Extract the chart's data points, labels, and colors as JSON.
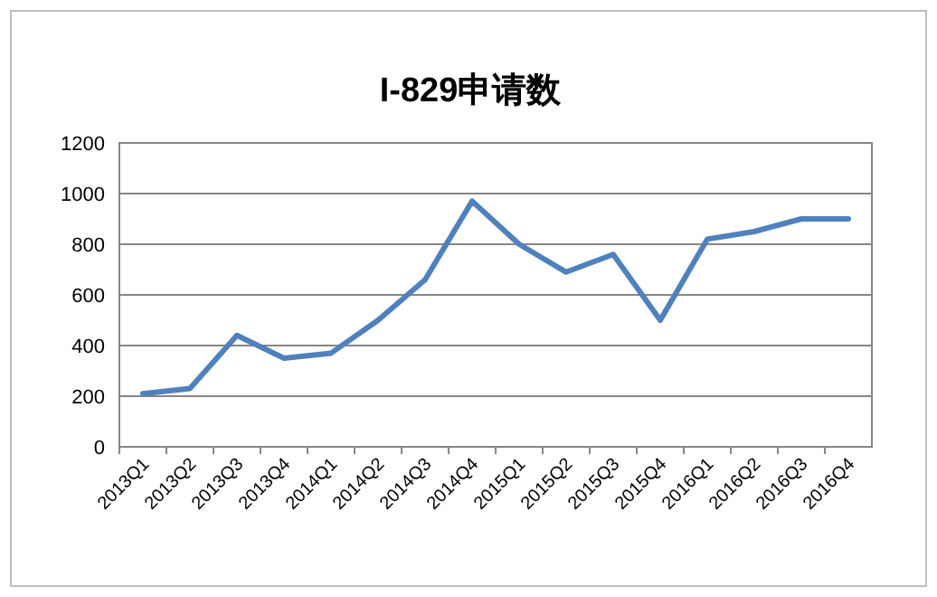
{
  "chart_data": {
    "type": "line",
    "title": "I-829申请数",
    "categories": [
      "2013Q1",
      "2013Q2",
      "2013Q3",
      "2013Q4",
      "2014Q1",
      "2014Q2",
      "2014Q3",
      "2014Q4",
      "2015Q1",
      "2015Q2",
      "2015Q3",
      "2015Q4",
      "2016Q1",
      "2016Q2",
      "2016Q3",
      "2016Q4"
    ],
    "series": [
      {
        "color": "#4f81bd",
        "values": [
          210,
          230,
          440,
          350,
          370,
          500,
          660,
          970,
          800,
          690,
          760,
          500,
          820,
          850,
          900,
          900
        ]
      }
    ],
    "ylim": [
      0,
      1200
    ],
    "yticks": [
      0,
      200,
      400,
      600,
      800,
      1000,
      1200
    ],
    "grid": "y",
    "line_style": "solid",
    "marker": "none"
  }
}
